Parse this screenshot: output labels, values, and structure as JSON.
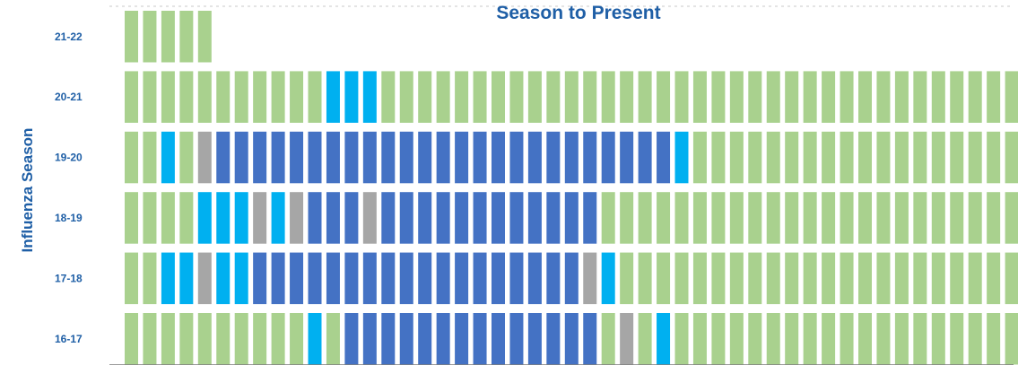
{
  "chart_data": {
    "type": "heatmap",
    "title": "Season to Present",
    "ylabel": "Influenza Season",
    "colors": {
      "minimal": "#a9d18e",
      "low": "#00b0f0",
      "moderate": "#a6a6a6",
      "high": "#4472c4"
    },
    "rows": [
      {
        "label": "21-22",
        "cells": "GGGGG"
      },
      {
        "label": "20-21",
        "cells": "GGGGGGGGGGGLLLGGGGGGGGGGGGGGGGGGGGGGGGGGGGGGGGGGGG"
      },
      {
        "label": "19-20",
        "cells": "GGLGMHHHHHHHHHHHHHHHHHHHHHHHHHLGGGGGGGGGGGGGGGGGGG"
      },
      {
        "label": "18-19",
        "cells": "GGGGLLLMLMHHHMHHHHHHHHHHHHGGGGGGGGGGGGGGGGGGGGGGGG"
      },
      {
        "label": "17-18",
        "cells": "GGLLMLLHHHHHHHHHHHHHHHHHHMLGGGGGGGGGGGGGGGGGGGGGGG"
      },
      {
        "label": "16-17",
        "cells": "GGGGGGGGGGLGHHHHHHHHHHHHHHGMGLGGGGGGGGGGGGGGGGGGGG"
      }
    ]
  }
}
